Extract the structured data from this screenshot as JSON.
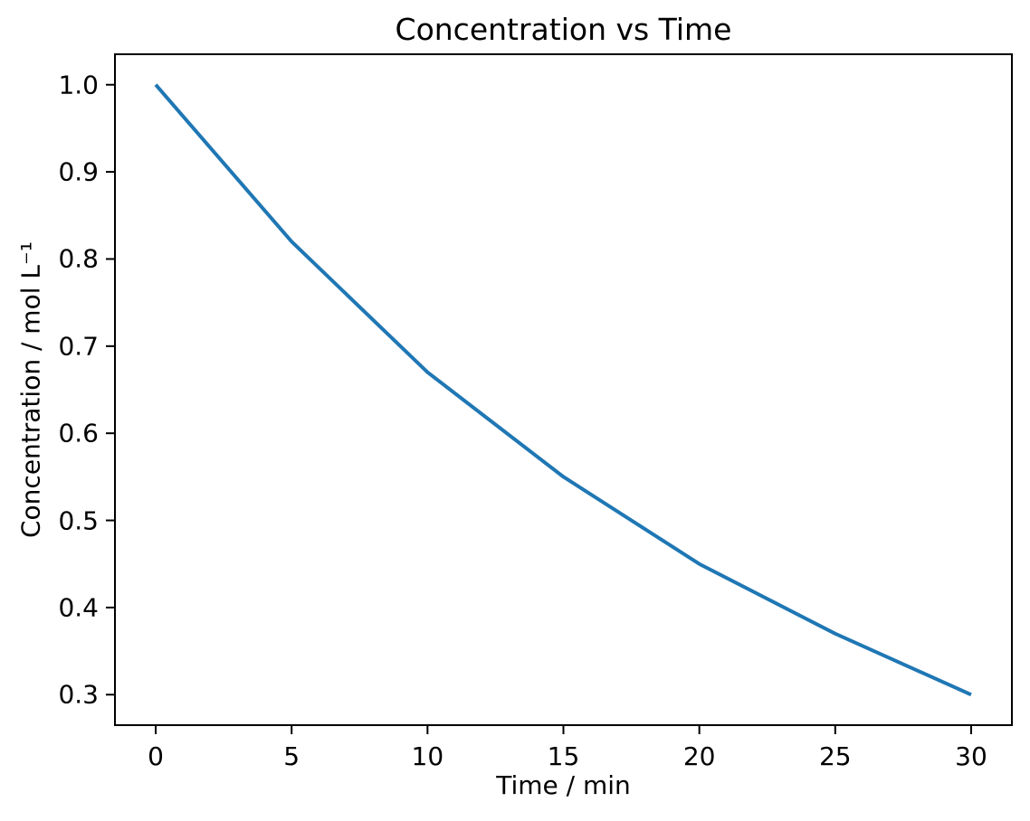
{
  "chart_data": {
    "type": "line",
    "title": "Concentration vs Time",
    "xlabel": "Time / min",
    "ylabel": "Concentration / mol L⁻¹",
    "x": [
      0,
      5,
      10,
      15,
      20,
      25,
      30
    ],
    "y": [
      1.0,
      0.82,
      0.67,
      0.55,
      0.45,
      0.37,
      0.3
    ],
    "xticks": [
      0,
      5,
      10,
      15,
      20,
      25,
      30
    ],
    "xtick_labels": [
      "0",
      "5",
      "10",
      "15",
      "20",
      "25",
      "30"
    ],
    "yticks": [
      0.3,
      0.4,
      0.5,
      0.6,
      0.7,
      0.8,
      0.9,
      1.0
    ],
    "ytick_labels": [
      "0.3",
      "0.4",
      "0.5",
      "0.6",
      "0.7",
      "0.8",
      "0.9",
      "1.0"
    ],
    "xlim": [
      -1.5,
      31.5
    ],
    "ylim": [
      0.265,
      1.035
    ],
    "grid": false,
    "line_color": "#1f77b4",
    "axis_color": "#000000",
    "background_color": "#ffffff"
  }
}
